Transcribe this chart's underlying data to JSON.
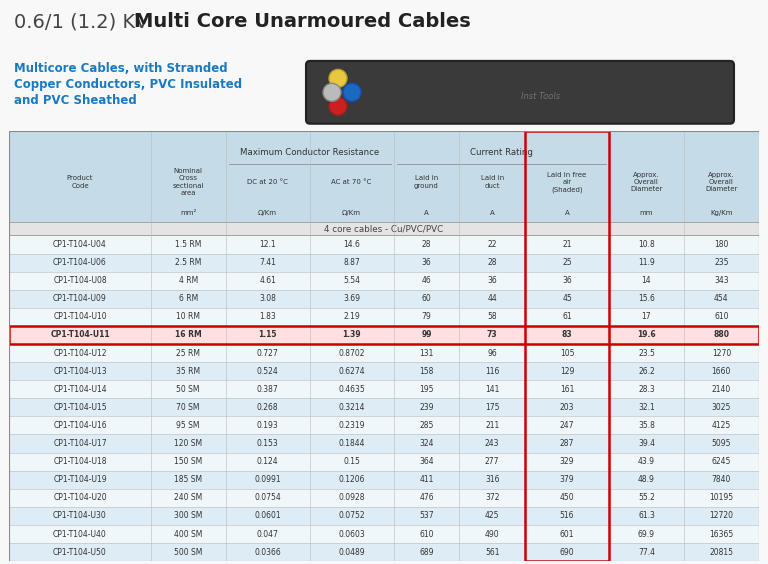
{
  "title_light": "0.6/1 (1.2) KV  ",
  "title_bold": "Multi Core Unarmoured Cables",
  "subtitle_line1": "Multicore Cables, with Stranded",
  "subtitle_line2": "Copper Conductors, PVC Insulated",
  "subtitle_line3": "and PVC Sheathed",
  "subtitle_color": "#1a7abf",
  "bg_color": "#f8f8f8",
  "header_bg": "#c5dce8",
  "alt_row_bg": "#deedf5",
  "white_row_bg": "#f0f7fb",
  "highlight_row_bg": "#ffe0e0",
  "highlight_row_border": "#cc0000",
  "highlight_col_border": "#cc0000",
  "col_separator_row": "4 core cables - Cu/PVC/PVC",
  "rows": [
    [
      "CP1-T104-U04",
      "1.5 RM",
      "12.1",
      "14.6",
      "28",
      "22",
      "21",
      "10.8",
      "180"
    ],
    [
      "CP1-T104-U06",
      "2.5 RM",
      "7.41",
      "8.87",
      "36",
      "28",
      "25",
      "11.9",
      "235"
    ],
    [
      "CP1-T104-U08",
      "4 RM",
      "4.61",
      "5.54",
      "46",
      "36",
      "36",
      "14",
      "343"
    ],
    [
      "CP1-T104-U09",
      "6 RM",
      "3.08",
      "3.69",
      "60",
      "44",
      "45",
      "15.6",
      "454"
    ],
    [
      "CP1-T104-U10",
      "10 RM",
      "1.83",
      "2.19",
      "79",
      "58",
      "61",
      "17",
      "610"
    ],
    [
      "CP1-T104-U11",
      "16 RM",
      "1.15",
      "1.39",
      "99",
      "73",
      "83",
      "19.6",
      "880"
    ],
    [
      "CP1-T104-U12",
      "25 RM",
      "0.727",
      "0.8702",
      "131",
      "96",
      "105",
      "23.5",
      "1270"
    ],
    [
      "CP1-T104-U13",
      "35 RM",
      "0.524",
      "0.6274",
      "158",
      "116",
      "129",
      "26.2",
      "1660"
    ],
    [
      "CP1-T104-U14",
      "50 SM",
      "0.387",
      "0.4635",
      "195",
      "141",
      "161",
      "28.3",
      "2140"
    ],
    [
      "CP1-T104-U15",
      "70 SM",
      "0.268",
      "0.3214",
      "239",
      "175",
      "203",
      "32.1",
      "3025"
    ],
    [
      "CP1-T104-U16",
      "95 SM",
      "0.193",
      "0.2319",
      "285",
      "211",
      "247",
      "35.8",
      "4125"
    ],
    [
      "CP1-T104-U17",
      "120 SM",
      "0.153",
      "0.1844",
      "324",
      "243",
      "287",
      "39.4",
      "5095"
    ],
    [
      "CP1-T104-U18",
      "150 SM",
      "0.124",
      "0.15",
      "364",
      "277",
      "329",
      "43.9",
      "6245"
    ],
    [
      "CP1-T104-U19",
      "185 SM",
      "0.0991",
      "0.1206",
      "411",
      "316",
      "379",
      "48.9",
      "7840"
    ],
    [
      "CP1-T104-U20",
      "240 SM",
      "0.0754",
      "0.0928",
      "476",
      "372",
      "450",
      "55.2",
      "10195"
    ],
    [
      "CP1-T104-U30",
      "300 SM",
      "0.0601",
      "0.0752",
      "537",
      "425",
      "516",
      "61.3",
      "12720"
    ],
    [
      "CP1-T104-U40",
      "400 SM",
      "0.047",
      "0.0603",
      "610",
      "490",
      "601",
      "69.9",
      "16365"
    ],
    [
      "CP1-T104-U50",
      "500 SM",
      "0.0366",
      "0.0489",
      "689",
      "561",
      "690",
      "77.4",
      "20815"
    ]
  ],
  "highlight_row_idx": 5,
  "highlight_col_idx": 6,
  "col_widths_raw": [
    1.55,
    0.82,
    0.92,
    0.92,
    0.72,
    0.72,
    0.92,
    0.82,
    0.82
  ]
}
